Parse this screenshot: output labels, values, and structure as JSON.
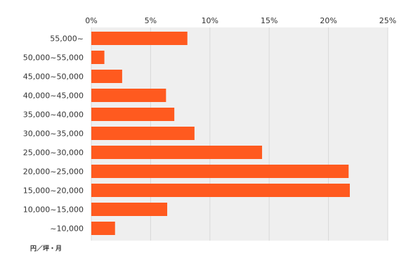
{
  "chart_data": {
    "type": "bar",
    "orientation": "horizontal",
    "categories": [
      "55,000~",
      "50,000~55,000",
      "45,000~50,000",
      "40,000~45,000",
      "35,000~40,000",
      "30,000~35,000",
      "25,000~30,000",
      "20,000~25,000",
      "15,000~20,000",
      "10,000~15,000",
      "~10,000"
    ],
    "values": [
      8.1,
      1.1,
      2.6,
      6.3,
      7.0,
      8.7,
      14.4,
      21.7,
      21.8,
      6.4,
      2.0
    ],
    "xlim": [
      0,
      25
    ],
    "xticks": [
      0,
      5,
      10,
      15,
      20,
      25
    ],
    "xtick_labels": [
      "0%",
      "5%",
      "10%",
      "15%",
      "20%",
      "25%"
    ],
    "unit_label": "円／坪・月",
    "grid": true,
    "legend": "none",
    "bar_color": "#ff5a1f",
    "grid_color": "#d9d9d9",
    "plot_background": "#efefef"
  }
}
